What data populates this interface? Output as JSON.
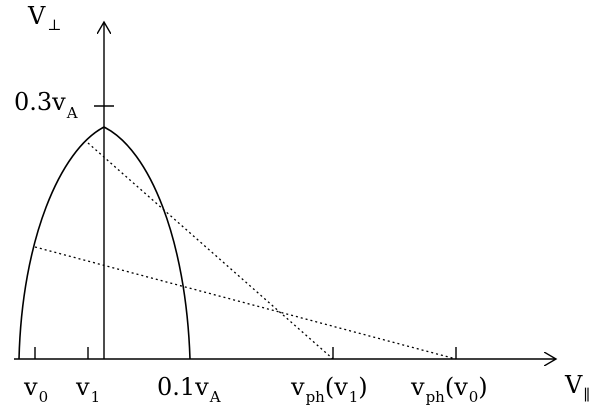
{
  "axes": {
    "y_label": {
      "main": "V",
      "sub": "⊥"
    },
    "x_label": {
      "main": "V",
      "sub": "∥"
    }
  },
  "y_tick": {
    "main": "0.3v",
    "sub": "A"
  },
  "x_ticks": [
    {
      "main": "v",
      "sub": "0",
      "after": ""
    },
    {
      "main": "v",
      "sub": "1",
      "after": ""
    },
    {
      "main": "0.1v",
      "sub": "A",
      "after": ""
    },
    {
      "main": "v",
      "sub": "ph",
      "after": "(v",
      "sub2": "1",
      "close": ")"
    },
    {
      "main": "v",
      "sub": "ph",
      "after": "(v",
      "sub2": "0",
      "close": ")"
    }
  ]
}
